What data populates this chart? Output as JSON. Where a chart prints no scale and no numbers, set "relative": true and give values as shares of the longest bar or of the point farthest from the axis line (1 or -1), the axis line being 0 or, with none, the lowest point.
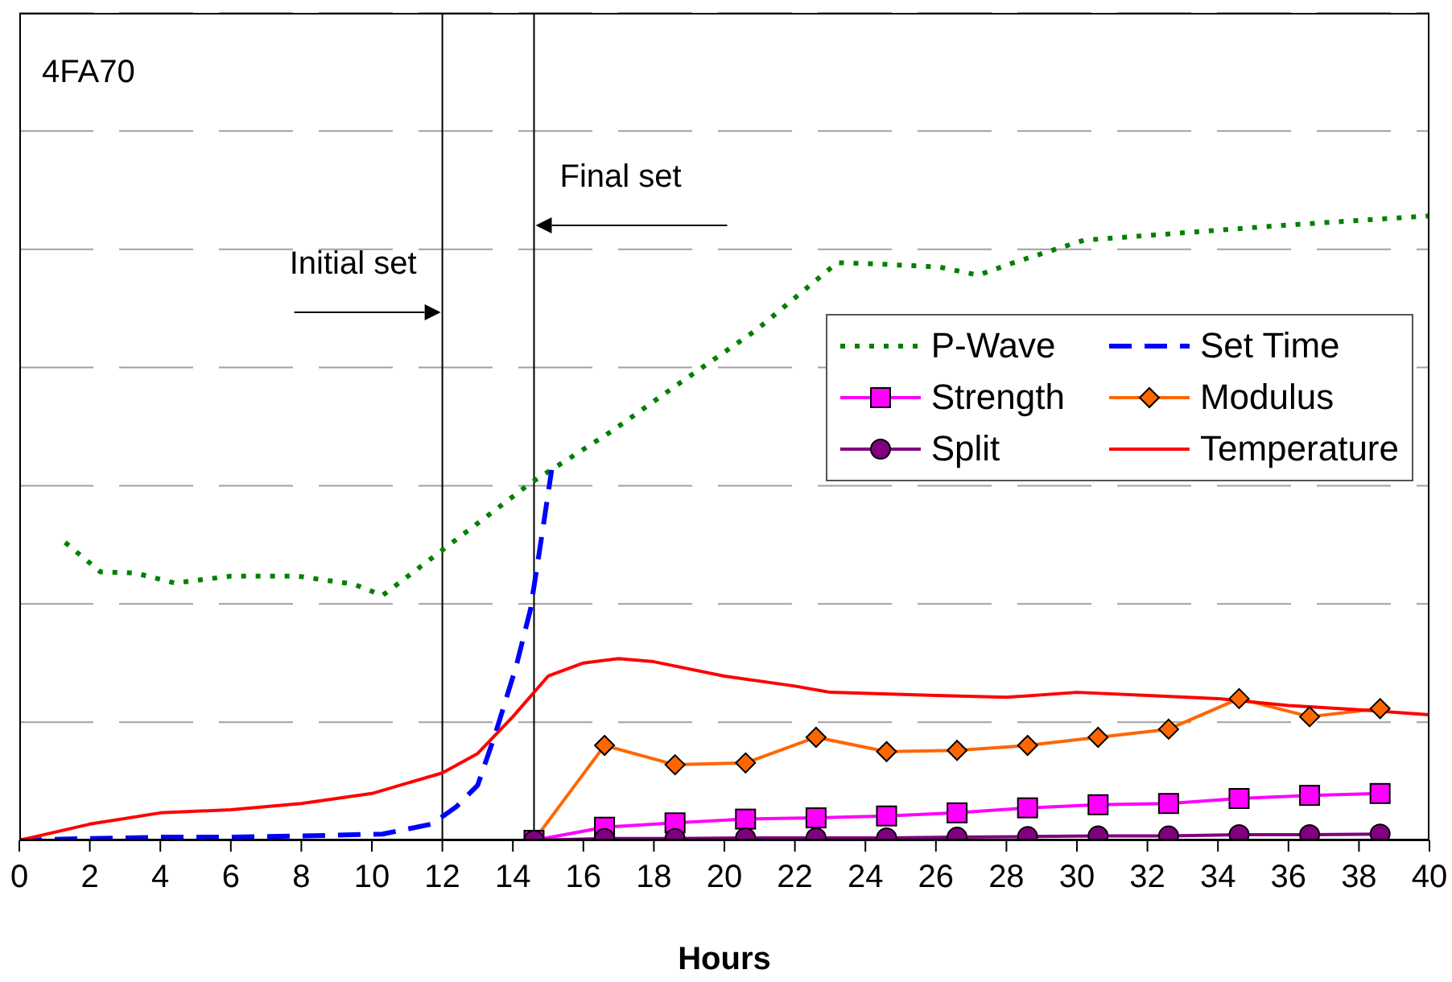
{
  "chart_data": {
    "type": "line",
    "title": "4FA70",
    "xlabel": "Hours",
    "relative": true,
    "xlim": [
      0,
      40
    ],
    "xticks": [
      0,
      2,
      4,
      6,
      8,
      10,
      12,
      14,
      16,
      18,
      20,
      22,
      24,
      26,
      28,
      30,
      32,
      34,
      36,
      38,
      40
    ],
    "grid": "y",
    "legend": "right",
    "ref_lines": [
      {
        "axis": "x",
        "value": 12,
        "label": "Initial set",
        "color": "#000000"
      },
      {
        "axis": "x",
        "value": 14.6,
        "label": "Final set",
        "color": "#000000"
      }
    ],
    "series": [
      {
        "name": "P-Wave",
        "color": "#008000",
        "line_style": "dotted",
        "marker": "none",
        "x": [
          1.3,
          2.3,
          3.3,
          4.4,
          6.0,
          7.9,
          9.5,
          10.3,
          12.1,
          14.5,
          16.8,
          18.6,
          20.9,
          23.2,
          24.3,
          26.1,
          27.2,
          28.2,
          30.2,
          31.4,
          35.9,
          40
        ],
        "values": [
          0.477,
          0.43,
          0.428,
          0.412,
          0.423,
          0.423,
          0.41,
          0.392,
          0.469,
          0.572,
          0.655,
          0.727,
          0.817,
          0.925,
          0.923,
          0.918,
          0.905,
          0.925,
          0.961,
          0.966,
          0.985,
          1.0
        ]
      },
      {
        "name": "Set Time",
        "color": "#0000ff",
        "line_style": "dashed",
        "marker": "none",
        "x": [
          0,
          2,
          4,
          6,
          8,
          10.3,
          11.7,
          12.4,
          13.0,
          13.5,
          14.1,
          14.5,
          14.8,
          15.1
        ],
        "values": [
          0,
          0.003,
          0.005,
          0.005,
          0.007,
          0.01,
          0.026,
          0.054,
          0.088,
          0.17,
          0.28,
          0.37,
          0.48,
          0.593
        ]
      },
      {
        "name": "Strength",
        "color": "#ff00ff",
        "line_style": "solid",
        "marker": "square",
        "x": [
          14.6,
          16.6,
          18.6,
          20.6,
          22.6,
          24.6,
          26.6,
          28.6,
          30.6,
          32.6,
          34.6,
          36.6,
          38.6
        ],
        "values": [
          0,
          0.021,
          0.028,
          0.034,
          0.036,
          0.039,
          0.044,
          0.052,
          0.057,
          0.059,
          0.067,
          0.072,
          0.075
        ]
      },
      {
        "name": "Modulus",
        "color": "#ff6600",
        "line_style": "solid",
        "marker": "diamond",
        "x": [
          14.6,
          16.6,
          18.6,
          20.6,
          22.6,
          24.6,
          26.6,
          28.6,
          30.6,
          32.6,
          34.6,
          36.6,
          38.6
        ],
        "values": [
          0,
          0.152,
          0.121,
          0.124,
          0.165,
          0.142,
          0.144,
          0.152,
          0.165,
          0.178,
          0.227,
          0.198,
          0.211
        ]
      },
      {
        "name": "Split",
        "color": "#800080",
        "line_style": "solid",
        "marker": "circle",
        "x": [
          14.6,
          16.6,
          18.6,
          20.6,
          22.6,
          24.6,
          26.6,
          28.6,
          30.6,
          32.6,
          34.6,
          36.6,
          38.6
        ],
        "values": [
          0,
          0.003,
          0.003,
          0.004,
          0.004,
          0.004,
          0.005,
          0.006,
          0.007,
          0.007,
          0.009,
          0.009,
          0.01
        ]
      },
      {
        "name": "Temperature",
        "color": "#ff0000",
        "line_style": "solid",
        "marker": "none",
        "x": [
          0,
          2,
          4,
          6,
          8,
          10,
          12,
          13,
          14,
          15,
          16,
          17,
          18,
          20,
          22,
          23,
          26,
          28,
          30,
          32,
          34,
          36,
          38,
          40
        ],
        "values": [
          0,
          0.026,
          0.044,
          0.049,
          0.059,
          0.075,
          0.108,
          0.139,
          0.198,
          0.263,
          0.284,
          0.291,
          0.286,
          0.263,
          0.247,
          0.237,
          0.232,
          0.229,
          0.237,
          0.232,
          0.227,
          0.216,
          0.209,
          0.201
        ]
      }
    ]
  }
}
